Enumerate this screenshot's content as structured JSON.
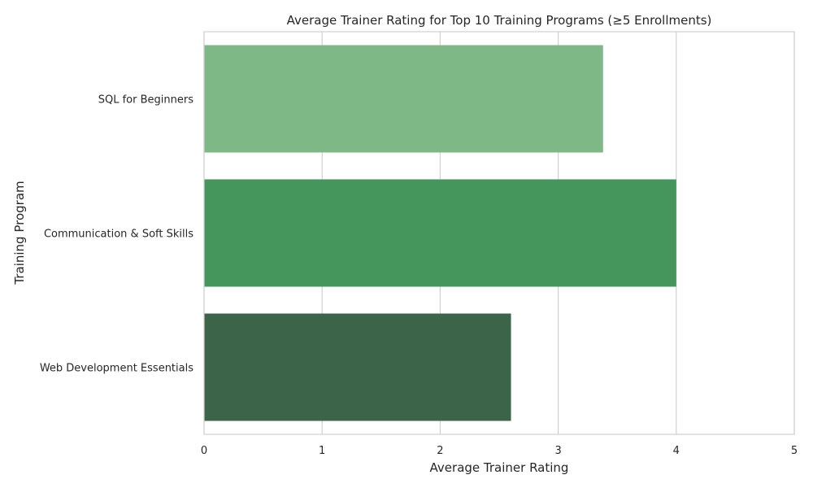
{
  "chart_data": {
    "type": "bar",
    "orientation": "horizontal",
    "title": "Average Trainer Rating for Top 10 Training Programs (≥5 Enrollments)",
    "xlabel": "Average Trainer Rating",
    "ylabel": "Training Program",
    "categories": [
      "SQL for Beginners",
      "Communication & Soft Skills",
      "Web Development Essentials"
    ],
    "values": [
      3.38,
      4.0,
      2.6
    ],
    "xlim": [
      0,
      5
    ],
    "xticks": [
      "0",
      "1",
      "2",
      "3",
      "4",
      "5"
    ],
    "grid": true,
    "colors": [
      "#7fb887",
      "#45965c",
      "#3b6449"
    ],
    "grid_color": "#d0d0d0",
    "text_color": "#262626"
  }
}
